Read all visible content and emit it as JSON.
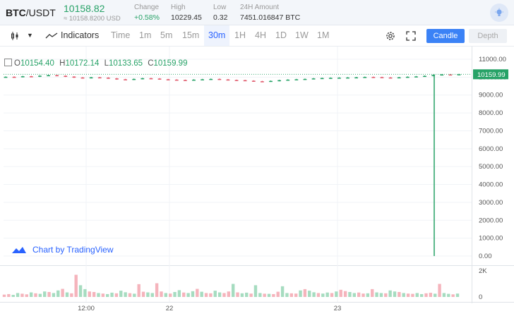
{
  "ticker": {
    "base": "BTC",
    "quote": "/USDT",
    "last_price": "10158.82",
    "price_usd": "≈ 10158.8200 USD",
    "change_label": "Change",
    "change_value": "+0.58%",
    "high_label": "High",
    "high_value": "10229.45",
    "low_label": "Low",
    "low_value": "0.32",
    "amount_label": "24H Amount",
    "amount_value": "7451.016847 BTC"
  },
  "toolbar": {
    "indicators_label": "Indicators",
    "intervals": [
      "Time",
      "1m",
      "5m",
      "15m",
      "30m",
      "1H",
      "4H",
      "1D",
      "1W",
      "1M"
    ],
    "active_interval": "30m",
    "candle_label": "Candle",
    "depth_label": "Depth"
  },
  "legend": {
    "o_label": "O",
    "o_value": "10154.40",
    "h_label": "H",
    "h_value": "10172.14",
    "l_label": "L",
    "l_value": "10133.65",
    "c_label": "C",
    "c_value": "10159.99"
  },
  "watermark": "Chart by TradingView",
  "colors": {
    "up": "#27a267",
    "down": "#e0596b",
    "accent": "#2962ff"
  },
  "chart_data": {
    "type": "candlestick",
    "y_ticks": [
      "11000.00",
      "10000.00",
      "9000.00",
      "8000.00",
      "7000.00",
      "6000.00",
      "5000.00",
      "4000.00",
      "3000.00",
      "2000.00",
      "1000.00",
      "0.00"
    ],
    "y_range": [
      0,
      11000
    ],
    "last_price_label": "10159.99",
    "x_ticks": [
      "12:00",
      "22",
      "23"
    ],
    "price_series": [
      10020,
      10010,
      10050,
      10030,
      10080,
      10110,
      10075,
      10030,
      9980,
      9950,
      9990,
      9970,
      9930,
      9880,
      9860,
      9900,
      9940,
      9920,
      9880,
      9860,
      9840,
      9830,
      9860,
      9880,
      9900,
      9870,
      9840,
      9830,
      9800,
      9770,
      9760,
      9790,
      9830,
      9860,
      9880,
      9900,
      9930,
      9950,
      9960,
      9970,
      9980,
      9990,
      10010,
      10000,
      9980,
      9970,
      9990,
      10020,
      10040,
      10070,
      10120,
      10150,
      10140,
      10160
    ],
    "spike_low": 0.32,
    "volume_axis_ticks": [
      "2K",
      "0"
    ],
    "volume_range": [
      0,
      2000
    ],
    "volume_series": [
      180,
      220,
      160,
      300,
      250,
      200,
      350,
      280,
      240,
      420,
      380,
      300,
      500,
      620,
      350,
      280,
      1700,
      900,
      600,
      420,
      380,
      300,
      260,
      220,
      330,
      280,
      480,
      360,
      290,
      250,
      980,
      400,
      350,
      300,
      1050,
      420,
      300,
      260,
      380,
      520,
      340,
      300,
      440,
      620,
      400,
      300,
      280,
      480,
      350,
      300,
      420,
      1000,
      350,
      280,
      330,
      260,
      900,
      300,
      250,
      240,
      220,
      400,
      820,
      300,
      280,
      260,
      500,
      600,
      480,
      360,
      300,
      260,
      340,
      300,
      420,
      550,
      450,
      380,
      300,
      340,
      260,
      280,
      600,
      350,
      300,
      280,
      500,
      420,
      380,
      300,
      260,
      240,
      300,
      220,
      280,
      320,
      250,
      1000,
      300,
      240,
      200,
      260
    ]
  }
}
